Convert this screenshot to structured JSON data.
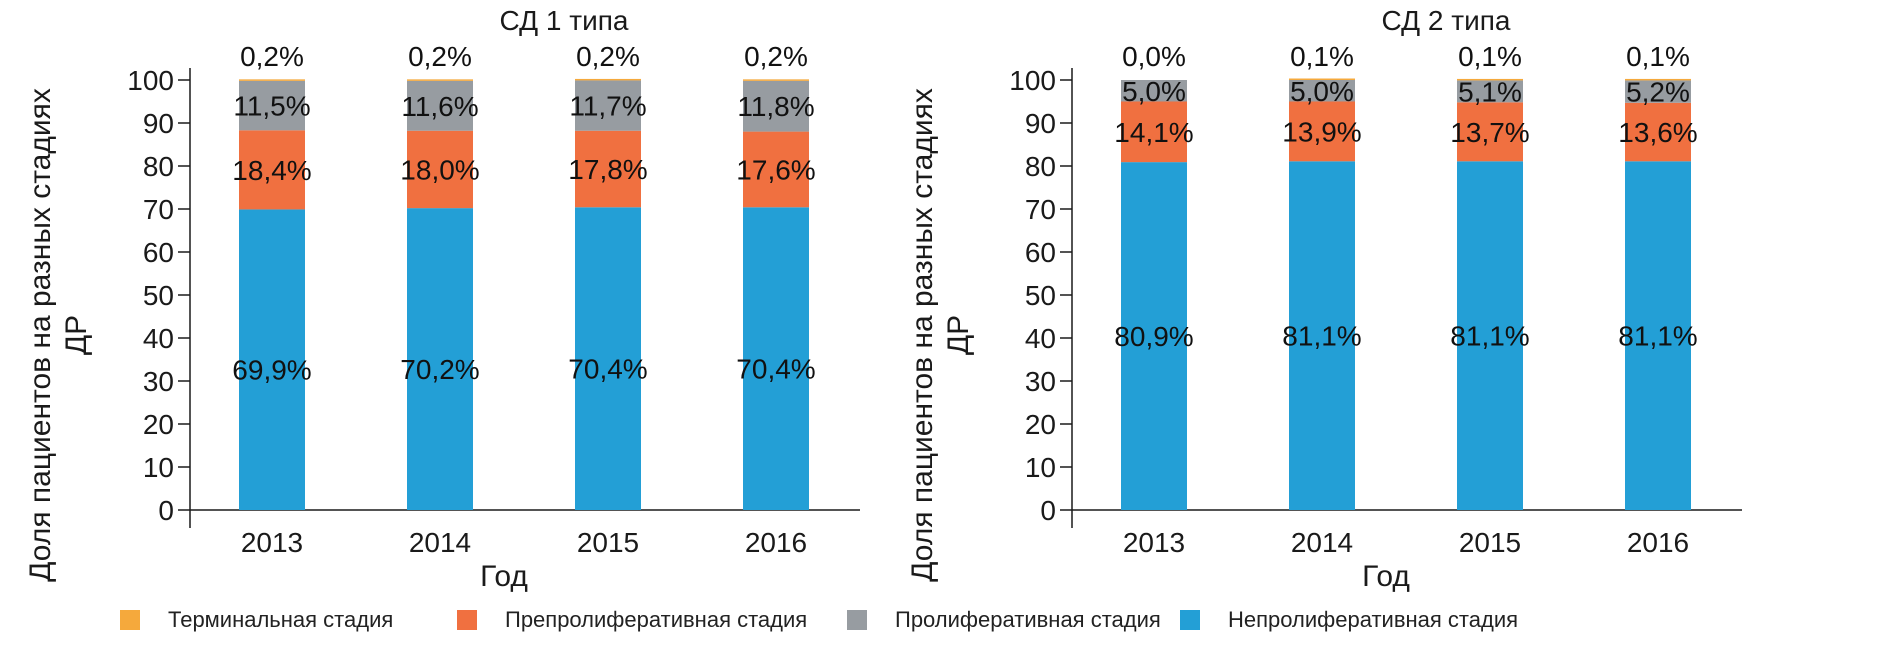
{
  "chart_data": [
    {
      "type": "bar",
      "stacked": true,
      "title": "СД 1 типа",
      "xlabel": "Год",
      "ylabel": "Доля пациентов на разных стадиях ДР",
      "ylabel_lines": [
        "Доля пациентов на разных стадиях",
        "ДР"
      ],
      "ylim": [
        0,
        100
      ],
      "yticks": [
        "0",
        "10",
        "20",
        "30",
        "40",
        "50",
        "60",
        "70",
        "80",
        "90",
        "100"
      ],
      "categories": [
        "2013",
        "2014",
        "2015",
        "2016"
      ],
      "series": [
        {
          "name": "Непролиферативная стадия",
          "values": [
            69.9,
            70.2,
            70.4,
            70.4
          ],
          "labels": [
            "69,9%",
            "70,2%",
            "70,4%",
            "70,4%"
          ]
        },
        {
          "name": "Препролиферативная стадия",
          "values": [
            18.4,
            18.0,
            17.8,
            17.6
          ],
          "labels": [
            "18,4%",
            "18,0%",
            "17,8%",
            "17,6%"
          ]
        },
        {
          "name": "Пролиферативная стадия",
          "values": [
            11.5,
            11.6,
            11.7,
            11.8
          ],
          "labels": [
            "11,5%",
            "11,6%",
            "11,7%",
            "11,8%"
          ]
        },
        {
          "name": "Терминальная стадия",
          "values": [
            0.2,
            0.2,
            0.2,
            0.2
          ],
          "labels": [
            "0,2%",
            "0,2%",
            "0,2%",
            "0,2%"
          ]
        }
      ]
    },
    {
      "type": "bar",
      "stacked": true,
      "title": "СД 2 типа",
      "xlabel": "Год",
      "ylabel": "Доля пациентов на разных стадиях ДР",
      "ylabel_lines": [
        "Доля пациентов на разных стадиях",
        "ДР"
      ],
      "ylim": [
        0,
        100
      ],
      "yticks": [
        "0",
        "10",
        "20",
        "30",
        "40",
        "50",
        "60",
        "70",
        "80",
        "90",
        "100"
      ],
      "categories": [
        "2013",
        "2014",
        "2015",
        "2016"
      ],
      "series": [
        {
          "name": "Непролиферативная стадия",
          "values": [
            80.9,
            81.1,
            81.1,
            81.1
          ],
          "labels": [
            "80,9%",
            "81,1%",
            "81,1%",
            "81,1%"
          ]
        },
        {
          "name": "Препролиферативная стадия",
          "values": [
            14.1,
            13.9,
            13.7,
            13.6
          ],
          "labels": [
            "14,1%",
            "13,9%",
            "13,7%",
            "13,6%"
          ]
        },
        {
          "name": "Пролиферативная стадия",
          "values": [
            5.0,
            5.0,
            5.1,
            5.2
          ],
          "labels": [
            "5,0%",
            "5,0%",
            "5,1%",
            "5,2%"
          ]
        },
        {
          "name": "Терминальная стадия",
          "values": [
            0.0,
            0.1,
            0.1,
            0.1
          ],
          "labels": [
            "0,0%",
            "0,1%",
            "0,1%",
            "0,1%"
          ]
        }
      ]
    }
  ],
  "colors": {
    "Непролиферативная стадия": "#239fd6",
    "Препролиферативная стадия": "#f07040",
    "Пролиферативная стадия": "#979ca1",
    "Терминальная стадия": "#f5a93c",
    "axis": "#1a1a1a"
  },
  "legend": {
    "items": [
      {
        "label": "Терминальная стадия",
        "color": "#f5a93c"
      },
      {
        "label": "Препролиферативная стадия",
        "color": "#f07040"
      },
      {
        "label": "Пролиферативная стадия",
        "color": "#979ca1"
      },
      {
        "label": "Непролиферативная стадия",
        "color": "#239fd6"
      }
    ]
  }
}
